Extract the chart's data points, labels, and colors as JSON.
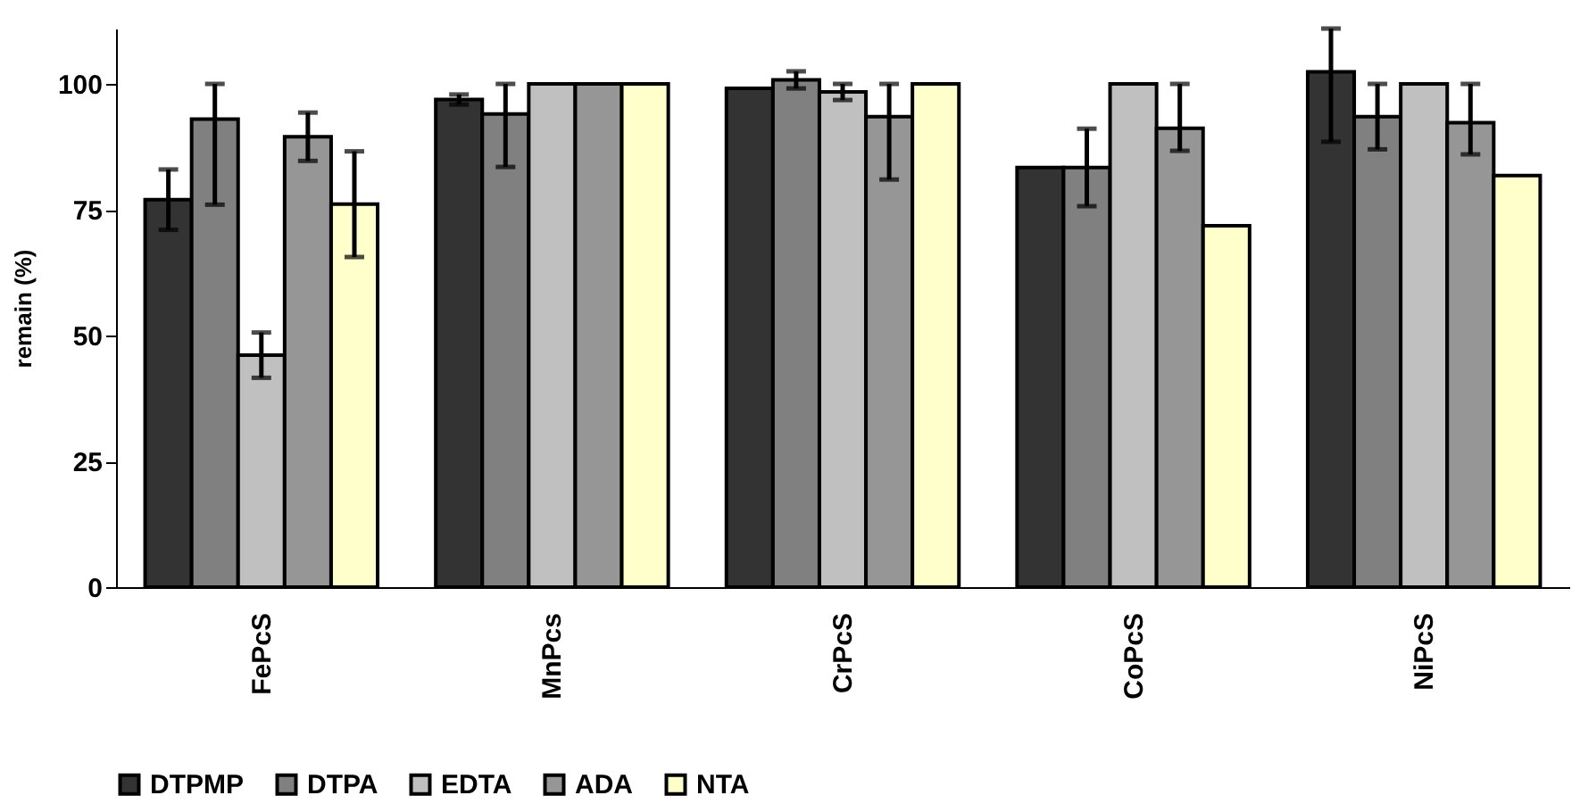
{
  "chart_data": {
    "type": "bar",
    "ylabel": "remain (%)",
    "categories": [
      "FePcS",
      "MnPcs",
      "CrPcS",
      "CoPcS",
      "NiPcS"
    ],
    "series": [
      {
        "name": "DTPMP",
        "color": "#333333",
        "values": [
          77,
          96.9,
          99.1,
          83.4,
          102.4
        ],
        "errors": [
          6,
          1,
          null,
          null,
          [
            88.5,
            111
          ]
        ]
      },
      {
        "name": "DTPA",
        "color": "#808080",
        "values": [
          93,
          94,
          100.8,
          83.4,
          93.5
        ],
        "errors": [
          [
            76,
            100
          ],
          [
            83.5,
            100
          ],
          1.7,
          7.7,
          6.5
        ]
      },
      {
        "name": "EDTA",
        "color": "#c0c0c0",
        "values": [
          46.1,
          100,
          98.4,
          100,
          100
        ],
        "errors": [
          4.5,
          null,
          1.6,
          null,
          null
        ]
      },
      {
        "name": "ADA",
        "color": "#969696",
        "values": [
          89.5,
          100,
          93.5,
          91.2,
          92.3
        ],
        "errors": [
          4.8,
          null,
          [
            81,
            100
          ],
          [
            86.7,
            100
          ],
          [
            86,
            100
          ]
        ]
      },
      {
        "name": "NTA",
        "color": "#ffffcc",
        "values": [
          76.1,
          100,
          100,
          71.8,
          81.8
        ],
        "errors": [
          10.5,
          null,
          null,
          null,
          null
        ]
      }
    ],
    "ylim": [
      0,
      111
    ],
    "yticks": [
      0,
      25,
      50,
      75,
      100
    ],
    "grid": false,
    "legend": "bottom"
  }
}
